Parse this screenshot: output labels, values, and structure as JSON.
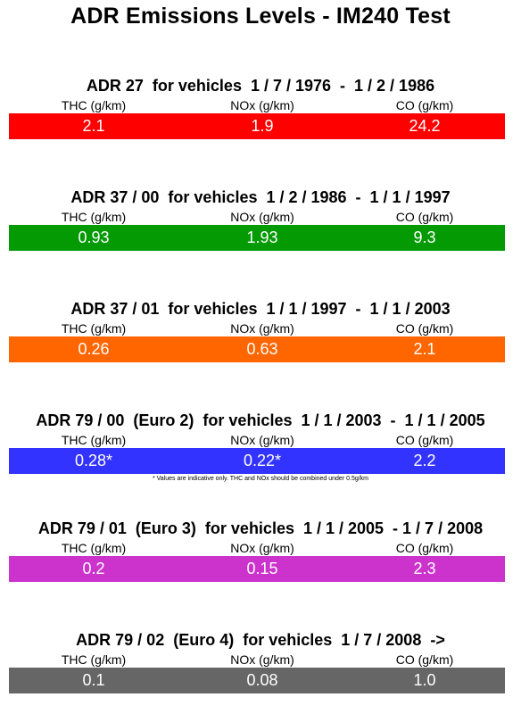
{
  "title": "ADR Emissions Levels - IM240 Test",
  "labels": {
    "thc": "THC (g/km)",
    "nox": "NOx (g/km)",
    "co": "CO (g/km)"
  },
  "sections": [
    {
      "heading": "ADR 27  for vehicles  1 / 7 / 1976  -  1 / 2 / 1986",
      "color": "#ff0000",
      "thc": "2.1",
      "nox": "1.9",
      "co": "24.2"
    },
    {
      "heading": "ADR 37 / 00  for vehicles  1 / 2 / 1986  -  1 / 1 / 1997",
      "color": "#049a04",
      "thc": "0.93",
      "nox": "1.93",
      "co": "9.3"
    },
    {
      "heading": "ADR 37 / 01  for vehicles  1 / 1 / 1997  -  1 / 1 / 2003",
      "color": "#ff6600",
      "thc": "0.26",
      "nox": "0.63",
      "co": "2.1"
    },
    {
      "heading": "ADR 79 / 00  (Euro 2)  for vehicles  1 / 1 / 2003  -  1 / 1 / 2005",
      "color": "#3333ff",
      "thc": "0.28*",
      "nox": "0.22*",
      "co": "2.2",
      "footnote": "* Values are indicative only. THC and NOx should be combined under 0.5g/km"
    },
    {
      "heading": "ADR 79 / 01  (Euro 3)  for vehicles  1 / 1 / 2005  - 1 / 7 / 2008",
      "color": "#cc33cc",
      "thc": "0.2",
      "nox": "0.15",
      "co": "2.3"
    },
    {
      "heading": "ADR 79 / 02  (Euro 4)  for vehicles  1 / 7 / 2008  ->",
      "color": "#666666",
      "thc": "0.1",
      "nox": "0.08",
      "co": "1.0"
    }
  ]
}
